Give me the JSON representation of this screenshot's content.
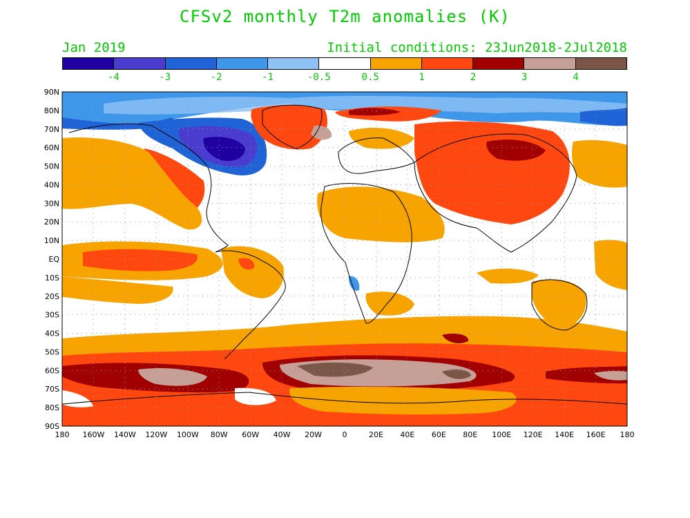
{
  "title": "CFSv2 monthly T2m anomalies (K)",
  "target_month": "Jan 2019",
  "initial_conditions": "Initial conditions: 23Jun2018-2Jul2018",
  "colorbar": {
    "colors": [
      "#2000a0",
      "#4a3ccf",
      "#1f63d6",
      "#3f97ea",
      "#8ec2f5",
      "#ffffff",
      "#f8a400",
      "#ff4810",
      "#a00000",
      "#c6a096",
      "#7b5546"
    ],
    "labels": [
      "-4",
      "-3",
      "-2",
      "-1",
      "-0.5",
      "0.5",
      "1",
      "2",
      "3",
      "4"
    ]
  },
  "lat_labels": [
    "90N",
    "80N",
    "70N",
    "60N",
    "50N",
    "40N",
    "30N",
    "20N",
    "10N",
    "EQ",
    "10S",
    "20S",
    "30S",
    "40S",
    "50S",
    "60S",
    "70S",
    "80S",
    "90S"
  ],
  "lon_labels": [
    "180",
    "160W",
    "140W",
    "120W",
    "100W",
    "80W",
    "60W",
    "40W",
    "20W",
    "0",
    "20E",
    "40E",
    "60E",
    "80E",
    "100E",
    "120E",
    "140E",
    "160E",
    "180"
  ]
}
